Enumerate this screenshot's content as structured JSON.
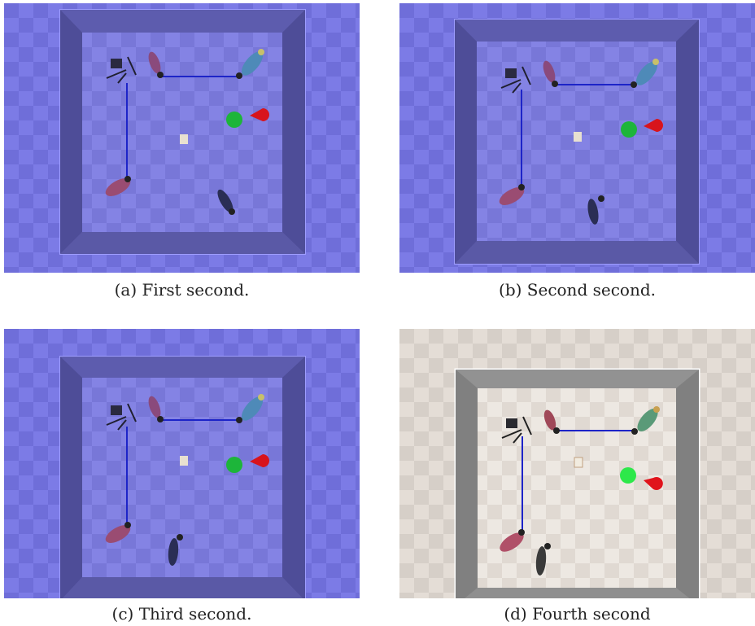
{
  "figure": {
    "panels": [
      {
        "id": "a",
        "caption": "(a) First second.",
        "theme": {
          "floor_light": "#7c7be6",
          "floor_dark": "#6f6ed9",
          "wall_top": "#5b5aa8",
          "wall_side": "#4a4a92",
          "wall_outline": "#9e9dff",
          "inner_light": "#8483e4",
          "inner_dark": "#7877d8"
        }
      },
      {
        "id": "b",
        "caption": "(b) Second second.",
        "theme": {
          "floor_light": "#7c7be6",
          "floor_dark": "#6f6ed9",
          "wall_top": "#5b5aa8",
          "wall_side": "#4a4a92",
          "wall_outline": "#9e9dff",
          "inner_light": "#8483e4",
          "inner_dark": "#7877d8"
        }
      },
      {
        "id": "c",
        "caption": "(c) Third second.",
        "theme": {
          "floor_light": "#7c7be6",
          "floor_dark": "#6f6ed9",
          "wall_top": "#5b5aa8",
          "wall_side": "#4a4a92",
          "wall_outline": "#9e9dff",
          "inner_light": "#8483e4",
          "inner_dark": "#7877d8"
        }
      },
      {
        "id": "d",
        "caption": "(d) Fourth second",
        "theme": {
          "floor_light": "#e4ddd6",
          "floor_dark": "#d6cfc8",
          "wall_top": "#8f8f8f",
          "wall_side": "#7d7d7d",
          "wall_outline": "#ffffff",
          "inner_light": "#ede8e2",
          "inner_dark": "#e0d9d2"
        }
      }
    ],
    "colors": {
      "link_line": "#1d24c8",
      "goal_green": "#1db53a",
      "goal_green_bright": "#2de84a",
      "marker_red": "#d8141c"
    }
  }
}
